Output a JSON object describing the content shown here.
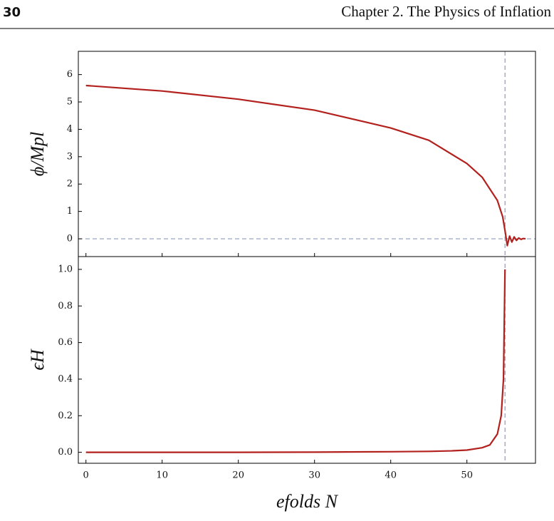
{
  "header": {
    "page_number": "30",
    "running_head": "Chapter 2. The Physics of Inflation"
  },
  "chart_data": [
    {
      "type": "line",
      "ylabel": "ϕ/Mpl",
      "color": "#b3211e",
      "x": [
        0,
        10,
        20,
        30,
        40,
        45,
        50,
        52,
        54,
        54.7,
        55,
        55.3,
        55.6,
        55.9,
        56.2,
        56.5,
        56.8,
        57.1,
        57.4,
        57.7
      ],
      "values": [
        5.6,
        5.4,
        5.1,
        4.7,
        4.05,
        3.6,
        2.75,
        2.25,
        1.4,
        0.8,
        0.3,
        -0.25,
        0.1,
        -0.12,
        0.07,
        -0.06,
        0.03,
        -0.02,
        0.01,
        0
      ],
      "xlim": [
        -1,
        59
      ],
      "xticks": [
        0,
        10,
        20,
        30,
        40,
        50
      ],
      "show_xtick_labels": false,
      "ylim": [
        -0.65,
        6.85
      ],
      "yticks": [
        0,
        1,
        2,
        3,
        4,
        5,
        6
      ],
      "hlines": [
        0
      ],
      "vlines": [
        55
      ],
      "ref_color": "#8e9bb8"
    },
    {
      "type": "line",
      "ylabel": "ϵH",
      "xlabel": "efolds N",
      "color": "#b3211e",
      "x": [
        0,
        10,
        20,
        30,
        40,
        45,
        48,
        50,
        52,
        53,
        54,
        54.5,
        54.8,
        55
      ],
      "values": [
        0,
        0,
        0,
        0.001,
        0.003,
        0.005,
        0.008,
        0.012,
        0.025,
        0.04,
        0.1,
        0.2,
        0.4,
        1.0
      ],
      "xlim": [
        -1,
        59
      ],
      "xticks": [
        0,
        10,
        20,
        30,
        40,
        50
      ],
      "show_xtick_labels": true,
      "ylim": [
        -0.06,
        1.07
      ],
      "yticks": [
        {
          "value": 0,
          "label": "0.0"
        },
        0.2,
        0.4,
        0.6,
        0.8,
        {
          "value": 1,
          "label": "1.0"
        }
      ],
      "vlines": [
        55
      ],
      "ref_color": "#8e9bb8"
    }
  ]
}
